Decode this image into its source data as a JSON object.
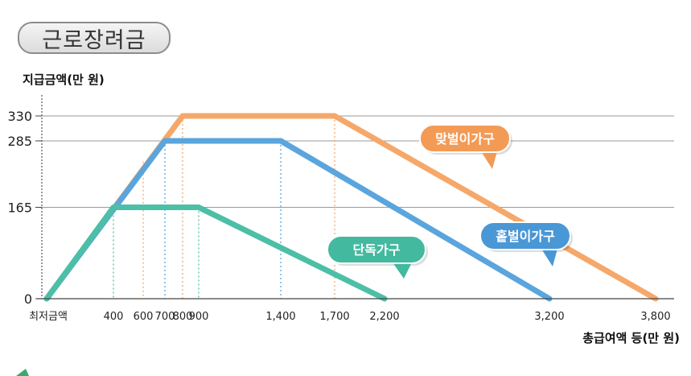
{
  "title": "근로장려금",
  "chart_data": {
    "type": "line",
    "ylabel": "지급금액(만 원)",
    "xlabel": "총급여액 등(만 원)",
    "x_first_label": "최저금액",
    "yticks": [
      0,
      165,
      285,
      330
    ],
    "xticks": [
      {
        "value": 400,
        "label": "400"
      },
      {
        "value": 600,
        "label": "600"
      },
      {
        "value": 700,
        "label": "700"
      },
      {
        "value": 800,
        "label": "800"
      },
      {
        "value": 900,
        "label": "900"
      },
      {
        "value": 1400,
        "label": "1,400"
      },
      {
        "value": 1700,
        "label": "1,700"
      },
      {
        "value": 2200,
        "label": "2,200"
      },
      {
        "value": 3200,
        "label": "3,200"
      },
      {
        "value": 3800,
        "label": "3,800"
      }
    ],
    "series": [
      {
        "name": "맞벌이가구",
        "color": "#f5a86a",
        "label_color": "#f39a55",
        "points": [
          [
            0,
            0
          ],
          [
            800,
            330
          ],
          [
            1700,
            330
          ],
          [
            3800,
            0
          ]
        ],
        "guides": [
          600,
          800,
          1700
        ]
      },
      {
        "name": "홑벌이가구",
        "color": "#5aa5dd",
        "label_color": "#4a97d6",
        "points": [
          [
            0,
            0
          ],
          [
            700,
            285
          ],
          [
            1400,
            285
          ],
          [
            3200,
            0
          ]
        ],
        "guides": [
          700,
          1400
        ]
      },
      {
        "name": "단독가구",
        "color": "#4cbfa6",
        "label_color": "#43b99f",
        "points": [
          [
            0,
            0
          ],
          [
            400,
            165
          ],
          [
            900,
            165
          ],
          [
            2200,
            0
          ]
        ],
        "guides": [
          400,
          900
        ]
      }
    ]
  }
}
